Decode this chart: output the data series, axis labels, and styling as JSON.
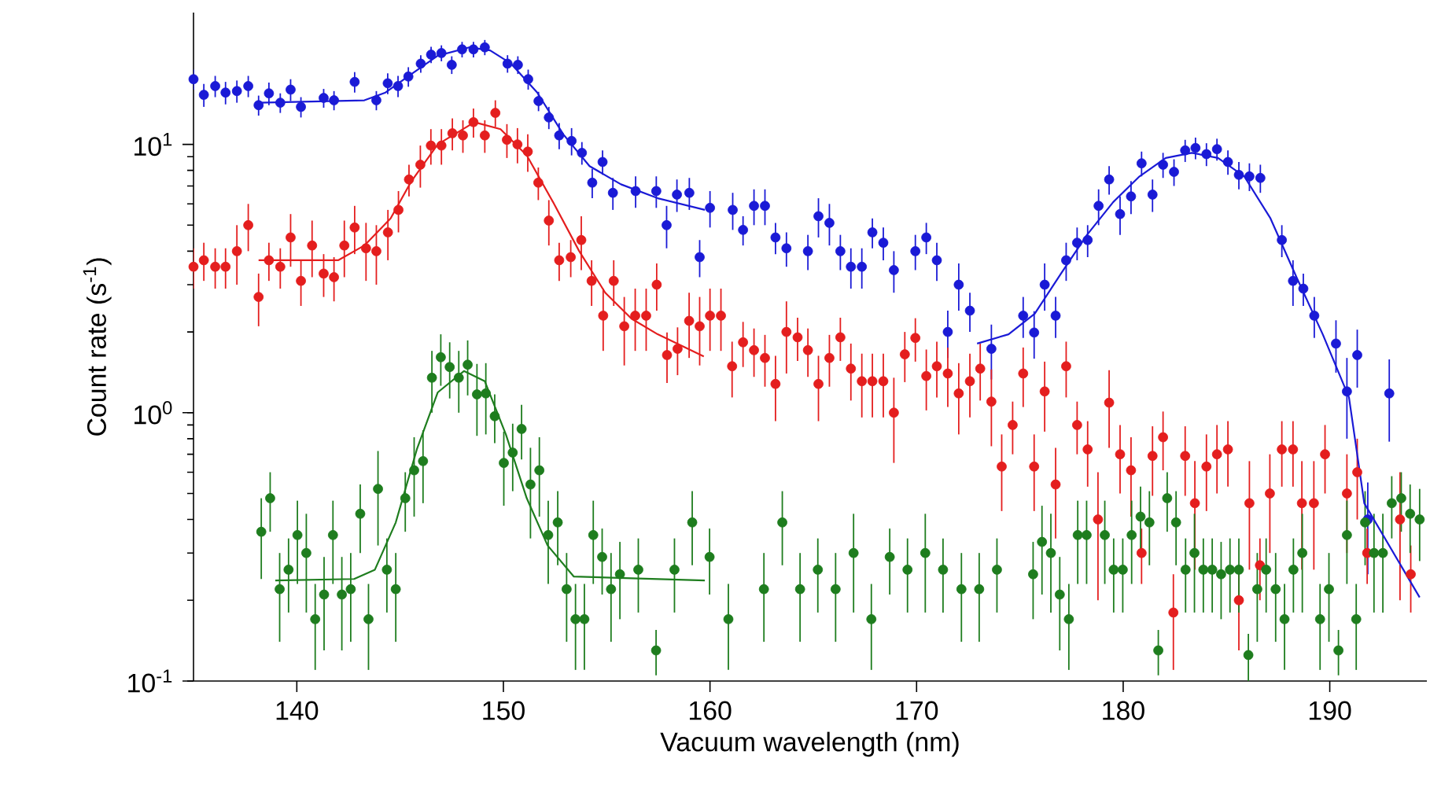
{
  "chart_data": {
    "type": "scatter",
    "xlabel": "Vacuum wavelength (nm)",
    "ylabel": "Count rate (s$^{-1}$)",
    "log": "y",
    "xlim": [
      135,
      194.7
    ],
    "ylim": [
      0.1,
      31
    ],
    "xticks": [
      140,
      150,
      160,
      170,
      180,
      190
    ],
    "yticks": [
      {
        "value": 0.1,
        "label": "10$^{-1}$"
      },
      {
        "value": 1,
        "label": "10$^{0}$"
      },
      {
        "value": 10,
        "label": "10$^{1}$"
      }
    ],
    "series": [
      {
        "marker": "circle",
        "color": "#1a1ad6",
        "x": [
          135.0,
          135.5,
          136.05,
          136.55,
          137.1,
          137.65,
          138.15,
          138.65,
          139.2,
          139.7,
          140.2,
          141.3,
          141.8,
          142.8,
          143.85,
          144.4,
          144.9,
          145.4,
          146.0,
          146.5,
          147.0,
          147.5,
          148.0,
          148.55,
          149.1,
          150.2,
          150.7,
          151.2,
          151.7,
          152.2,
          152.7,
          153.3,
          153.8,
          154.3,
          154.8,
          155.3,
          156.4,
          157.4,
          157.9,
          158.4,
          159.0,
          159.5,
          160.0,
          161.1,
          161.6,
          162.13,
          162.66,
          163.17,
          163.7,
          164.74,
          165.25,
          165.78,
          166.31,
          166.82,
          167.35,
          167.86,
          168.39,
          168.9,
          169.94,
          170.47,
          170.98,
          171.51,
          172.04,
          172.58,
          173.62,
          175.16,
          175.69,
          176.2,
          176.73,
          177.24,
          177.77,
          178.28,
          178.81,
          179.32,
          179.85,
          180.38,
          180.89,
          181.42,
          181.93,
          182.46,
          183.0,
          183.5,
          184.03,
          184.54,
          185.07,
          185.6,
          186.11,
          186.64,
          187.68,
          188.22,
          188.72,
          189.25,
          190.3,
          190.83,
          191.33,
          191.84,
          192.88
        ],
        "values": [
          17.5,
          15.3,
          16.5,
          15.6,
          15.8,
          16.5,
          14.0,
          15.5,
          14.3,
          16.0,
          13.8,
          14.9,
          14.6,
          17.1,
          14.6,
          16.9,
          16.5,
          17.9,
          20.0,
          21.6,
          21.9,
          19.8,
          22.6,
          22.6,
          23.0,
          20.0,
          19.8,
          17.5,
          14.5,
          12.6,
          10.8,
          10.3,
          9.3,
          7.2,
          8.6,
          6.6,
          6.7,
          6.7,
          5.0,
          6.5,
          6.6,
          3.8,
          5.8,
          5.7,
          4.8,
          5.9,
          5.9,
          4.5,
          4.1,
          4.0,
          5.4,
          5.1,
          4.0,
          3.5,
          3.5,
          4.7,
          4.3,
          3.4,
          4.0,
          4.5,
          3.7,
          2.0,
          3.0,
          2.4,
          1.73,
          2.3,
          1.99,
          3.0,
          2.3,
          3.7,
          4.3,
          4.4,
          5.9,
          7.4,
          5.5,
          6.4,
          8.5,
          6.5,
          8.4,
          7.9,
          9.5,
          9.7,
          9.2,
          9.6,
          8.6,
          7.7,
          7.6,
          7.5,
          4.4,
          3.1,
          2.9,
          2.3,
          1.81,
          1.2,
          1.64,
          0.4,
          1.18
        ],
        "errors": [
          1.5,
          1.5,
          1.5,
          1.5,
          1.5,
          1.5,
          1.2,
          1.5,
          1.2,
          1.5,
          1.2,
          1.2,
          1.2,
          1.5,
          1.2,
          1.5,
          1.5,
          1.5,
          1.5,
          1.5,
          1.5,
          1.5,
          1.5,
          1.5,
          1.5,
          1.5,
          1.5,
          1.5,
          1.2,
          1.2,
          1.2,
          1.2,
          0.9,
          0.9,
          0.9,
          0.9,
          0.9,
          0.9,
          0.9,
          0.9,
          0.9,
          0.6,
          0.9,
          0.9,
          0.6,
          0.9,
          0.9,
          0.6,
          0.6,
          0.6,
          0.9,
          0.9,
          0.6,
          0.6,
          0.6,
          0.6,
          0.6,
          0.6,
          0.6,
          0.6,
          0.6,
          0.4,
          0.6,
          0.4,
          0.4,
          0.4,
          0.4,
          0.6,
          0.4,
          0.6,
          0.6,
          0.6,
          0.9,
          0.9,
          0.9,
          0.9,
          0.9,
          0.9,
          0.9,
          0.9,
          0.9,
          0.9,
          0.9,
          0.9,
          0.9,
          0.9,
          0.9,
          0.9,
          0.6,
          0.6,
          0.4,
          0.4,
          0.4,
          0.4,
          0.4,
          0.15,
          0.4
        ]
      },
      {
        "marker": "circle",
        "color": "#e41e1e",
        "x": [
          135.0,
          135.5,
          136.05,
          136.55,
          137.1,
          137.65,
          138.15,
          138.65,
          139.2,
          139.7,
          140.2,
          140.74,
          141.3,
          141.8,
          142.3,
          142.8,
          143.35,
          143.85,
          144.41,
          144.92,
          145.43,
          145.98,
          146.49,
          147.0,
          147.53,
          148.04,
          148.55,
          149.1,
          149.61,
          150.17,
          150.68,
          151.18,
          151.69,
          152.2,
          152.7,
          153.26,
          153.77,
          154.27,
          154.83,
          155.34,
          155.85,
          156.38,
          156.91,
          157.42,
          157.92,
          158.43,
          158.99,
          159.5,
          160.0,
          160.53,
          161.07,
          161.6,
          162.13,
          162.66,
          163.17,
          163.7,
          164.24,
          164.74,
          165.25,
          165.78,
          166.31,
          166.82,
          167.35,
          167.86,
          168.39,
          168.9,
          169.43,
          169.94,
          170.47,
          170.98,
          171.51,
          172.04,
          172.58,
          173.08,
          173.62,
          174.12,
          174.65,
          175.16,
          175.69,
          176.2,
          176.73,
          177.24,
          177.77,
          178.28,
          178.78,
          179.32,
          179.85,
          180.38,
          180.89,
          181.42,
          181.93,
          182.43,
          183.0,
          183.47,
          184.03,
          184.54,
          185.07,
          185.6,
          186.11,
          186.62,
          187.1,
          187.68,
          188.22,
          188.65,
          189.23,
          189.77,
          190.83,
          191.33,
          191.81,
          193.4,
          193.92
        ],
        "values": [
          3.5,
          3.7,
          3.5,
          3.5,
          4.0,
          5.0,
          2.7,
          3.7,
          3.5,
          4.5,
          3.1,
          4.2,
          3.3,
          3.2,
          4.2,
          4.9,
          4.1,
          4.0,
          4.7,
          5.7,
          7.4,
          8.4,
          9.9,
          9.9,
          11.0,
          10.8,
          12.1,
          10.8,
          13.1,
          10.4,
          10.0,
          9.4,
          7.2,
          5.2,
          3.7,
          3.8,
          4.4,
          3.1,
          2.3,
          3.1,
          2.1,
          2.3,
          2.3,
          3.0,
          1.64,
          1.73,
          2.2,
          2.1,
          2.3,
          2.3,
          1.49,
          1.83,
          1.71,
          1.6,
          1.28,
          2.0,
          1.91,
          1.71,
          1.28,
          1.6,
          1.91,
          1.46,
          1.31,
          1.31,
          1.31,
          1.0,
          1.65,
          1.9,
          1.37,
          1.49,
          1.4,
          1.18,
          1.31,
          1.46,
          1.1,
          0.63,
          0.9,
          1.4,
          0.63,
          1.2,
          0.54,
          1.49,
          0.9,
          0.73,
          0.4,
          1.09,
          0.7,
          0.61,
          0.3,
          0.69,
          0.81,
          0.18,
          0.69,
          0.46,
          0.63,
          0.7,
          0.73,
          0.2,
          0.46,
          0.27,
          0.5,
          0.73,
          0.73,
          0.46,
          0.46,
          0.7,
          0.5,
          0.6,
          0.3,
          0.4,
          0.25
        ],
        "errors": [
          0.6,
          0.6,
          0.6,
          0.6,
          1.0,
          1.0,
          0.6,
          0.6,
          0.6,
          1.0,
          0.6,
          1.0,
          0.6,
          0.6,
          1.0,
          1.0,
          1.0,
          1.0,
          1.0,
          1.0,
          1.0,
          1.5,
          1.5,
          1.5,
          1.5,
          1.5,
          1.5,
          1.5,
          1.5,
          1.5,
          1.5,
          1.5,
          1.0,
          1.0,
          0.6,
          0.6,
          1.0,
          0.6,
          0.6,
          0.6,
          0.6,
          0.6,
          0.6,
          0.6,
          0.35,
          0.35,
          0.6,
          0.6,
          0.6,
          0.6,
          0.35,
          0.35,
          0.35,
          0.35,
          0.35,
          0.6,
          0.35,
          0.35,
          0.35,
          0.35,
          0.35,
          0.35,
          0.35,
          0.35,
          0.35,
          0.35,
          0.35,
          0.35,
          0.35,
          0.35,
          0.35,
          0.35,
          0.35,
          0.35,
          0.35,
          0.2,
          0.2,
          0.35,
          0.2,
          0.35,
          0.2,
          0.35,
          0.2,
          0.2,
          0.2,
          0.35,
          0.2,
          0.2,
          0.07,
          0.2,
          0.2,
          0.07,
          0.2,
          0.2,
          0.2,
          0.2,
          0.2,
          0.07,
          0.2,
          0.07,
          0.2,
          0.2,
          0.2,
          0.2,
          0.2,
          0.2,
          0.2,
          0.2,
          0.07,
          0.2,
          0.07
        ]
      },
      {
        "marker": "circle",
        "color": "#1e7d1e",
        "x": [
          138.28,
          138.71,
          139.17,
          139.6,
          140.03,
          140.46,
          140.89,
          141.32,
          141.75,
          142.18,
          142.61,
          143.07,
          143.47,
          143.93,
          144.36,
          144.79,
          145.25,
          145.68,
          146.11,
          146.54,
          146.97,
          147.4,
          147.84,
          148.27,
          148.72,
          149.15,
          149.58,
          150.02,
          150.45,
          150.88,
          151.31,
          151.74,
          152.17,
          152.63,
          153.06,
          153.49,
          153.92,
          154.35,
          154.78,
          155.21,
          155.64,
          156.53,
          157.39,
          158.28,
          159.14,
          159.98,
          160.89,
          162.61,
          163.5,
          164.36,
          165.22,
          166.08,
          166.95,
          167.81,
          168.7,
          169.56,
          170.42,
          171.28,
          172.17,
          173.03,
          173.89,
          175.64,
          176.07,
          176.5,
          176.93,
          177.37,
          177.8,
          178.23,
          179.11,
          179.54,
          179.98,
          180.41,
          180.84,
          181.27,
          181.7,
          182.13,
          182.56,
          183.02,
          183.45,
          183.88,
          184.31,
          184.74,
          185.17,
          185.6,
          186.06,
          186.49,
          186.92,
          187.38,
          187.81,
          188.24,
          188.67,
          189.53,
          189.96,
          190.42,
          190.83,
          191.28,
          191.71,
          192.14,
          192.57,
          193.0,
          193.46,
          193.89,
          194.35
        ],
        "values": [
          0.36,
          0.48,
          0.22,
          0.26,
          0.35,
          0.3,
          0.17,
          0.21,
          0.35,
          0.21,
          0.22,
          0.42,
          0.17,
          0.52,
          0.26,
          0.22,
          0.48,
          0.61,
          0.66,
          1.35,
          1.61,
          1.48,
          1.35,
          1.51,
          1.17,
          1.18,
          0.97,
          0.65,
          0.71,
          0.87,
          0.54,
          0.61,
          0.35,
          0.39,
          0.22,
          0.17,
          0.17,
          0.35,
          0.29,
          0.22,
          0.25,
          0.26,
          0.13,
          0.26,
          0.39,
          0.29,
          0.17,
          0.22,
          0.39,
          0.22,
          0.26,
          0.22,
          0.3,
          0.17,
          0.29,
          0.26,
          0.3,
          0.26,
          0.22,
          0.22,
          0.26,
          0.25,
          0.33,
          0.3,
          0.21,
          0.17,
          0.35,
          0.35,
          0.35,
          0.26,
          0.26,
          0.35,
          0.41,
          0.39,
          0.13,
          0.48,
          0.39,
          0.26,
          0.3,
          0.26,
          0.26,
          0.25,
          0.26,
          0.26,
          0.125,
          0.22,
          0.26,
          0.22,
          0.17,
          0.26,
          0.3,
          0.17,
          0.22,
          0.13,
          0.35,
          0.17,
          0.39,
          0.3,
          0.3,
          0.46,
          0.48,
          0.42,
          0.4
        ],
        "errors": [
          0.12,
          0.12,
          0.08,
          0.08,
          0.12,
          0.12,
          0.06,
          0.08,
          0.12,
          0.08,
          0.08,
          0.12,
          0.06,
          0.2,
          0.08,
          0.08,
          0.12,
          0.2,
          0.2,
          0.35,
          0.35,
          0.35,
          0.35,
          0.35,
          0.35,
          0.35,
          0.2,
          0.2,
          0.2,
          0.2,
          0.2,
          0.2,
          0.12,
          0.12,
          0.08,
          0.06,
          0.06,
          0.12,
          0.08,
          0.08,
          0.08,
          0.08,
          0.025,
          0.08,
          0.12,
          0.08,
          0.06,
          0.08,
          0.12,
          0.08,
          0.08,
          0.08,
          0.12,
          0.06,
          0.08,
          0.08,
          0.12,
          0.08,
          0.08,
          0.08,
          0.08,
          0.08,
          0.12,
          0.12,
          0.08,
          0.06,
          0.12,
          0.12,
          0.12,
          0.08,
          0.08,
          0.12,
          0.12,
          0.12,
          0.025,
          0.12,
          0.12,
          0.08,
          0.12,
          0.08,
          0.08,
          0.08,
          0.08,
          0.08,
          0.025,
          0.08,
          0.08,
          0.08,
          0.06,
          0.08,
          0.12,
          0.06,
          0.08,
          0.025,
          0.12,
          0.06,
          0.12,
          0.12,
          0.12,
          0.12,
          0.12,
          0.12,
          0.12
        ]
      },
      {
        "type": "line",
        "marker": "none",
        "color": "#1a1ad6",
        "x": [
          138.15,
          143.27,
          144.29,
          145.55,
          146.82,
          148.34,
          149.36,
          150.37,
          151.64,
          152.9,
          154.17,
          155.69,
          157.47,
          159.75
        ],
        "values": [
          14.3,
          14.6,
          15.6,
          18.3,
          21.4,
          23.0,
          22.4,
          20.0,
          15.6,
          10.9,
          8.3,
          7.1,
          6.3,
          5.7
        ]
      },
      {
        "type": "line",
        "marker": "none",
        "color": "#e41e1e",
        "x": [
          138.15,
          142.0,
          143.27,
          144.54,
          145.55,
          146.82,
          148.6,
          149.86,
          151.13,
          152.4,
          153.67,
          154.93,
          156.2,
          157.47,
          159.7
        ],
        "values": [
          3.7,
          3.7,
          4.2,
          5.3,
          7.3,
          10.0,
          12.1,
          11.4,
          9.1,
          6.1,
          4.0,
          2.8,
          2.24,
          1.96,
          1.62
        ]
      },
      {
        "type": "line",
        "marker": "none",
        "color": "#1e7d1e",
        "x": [
          138.96,
          142.77,
          143.78,
          144.79,
          145.81,
          146.82,
          148.09,
          149.1,
          150.12,
          151.13,
          152.14,
          153.41,
          159.75
        ],
        "values": [
          0.237,
          0.24,
          0.26,
          0.39,
          0.73,
          1.19,
          1.43,
          1.31,
          0.83,
          0.48,
          0.32,
          0.245,
          0.237
        ]
      },
      {
        "type": "line",
        "marker": "none",
        "color": "#1a1ad6",
        "x": [
          172.93,
          174.45,
          175.72,
          176.99,
          178.25,
          179.52,
          180.79,
          182.06,
          183.32,
          184.59,
          185.86,
          187.13,
          188.39,
          189.66,
          190.93,
          191.67,
          194.35
        ],
        "values": [
          1.81,
          1.96,
          2.34,
          3.3,
          4.6,
          6.1,
          7.6,
          8.9,
          9.3,
          8.9,
          7.6,
          5.3,
          3.2,
          1.96,
          1.14,
          0.46,
          0.205
        ]
      }
    ]
  }
}
